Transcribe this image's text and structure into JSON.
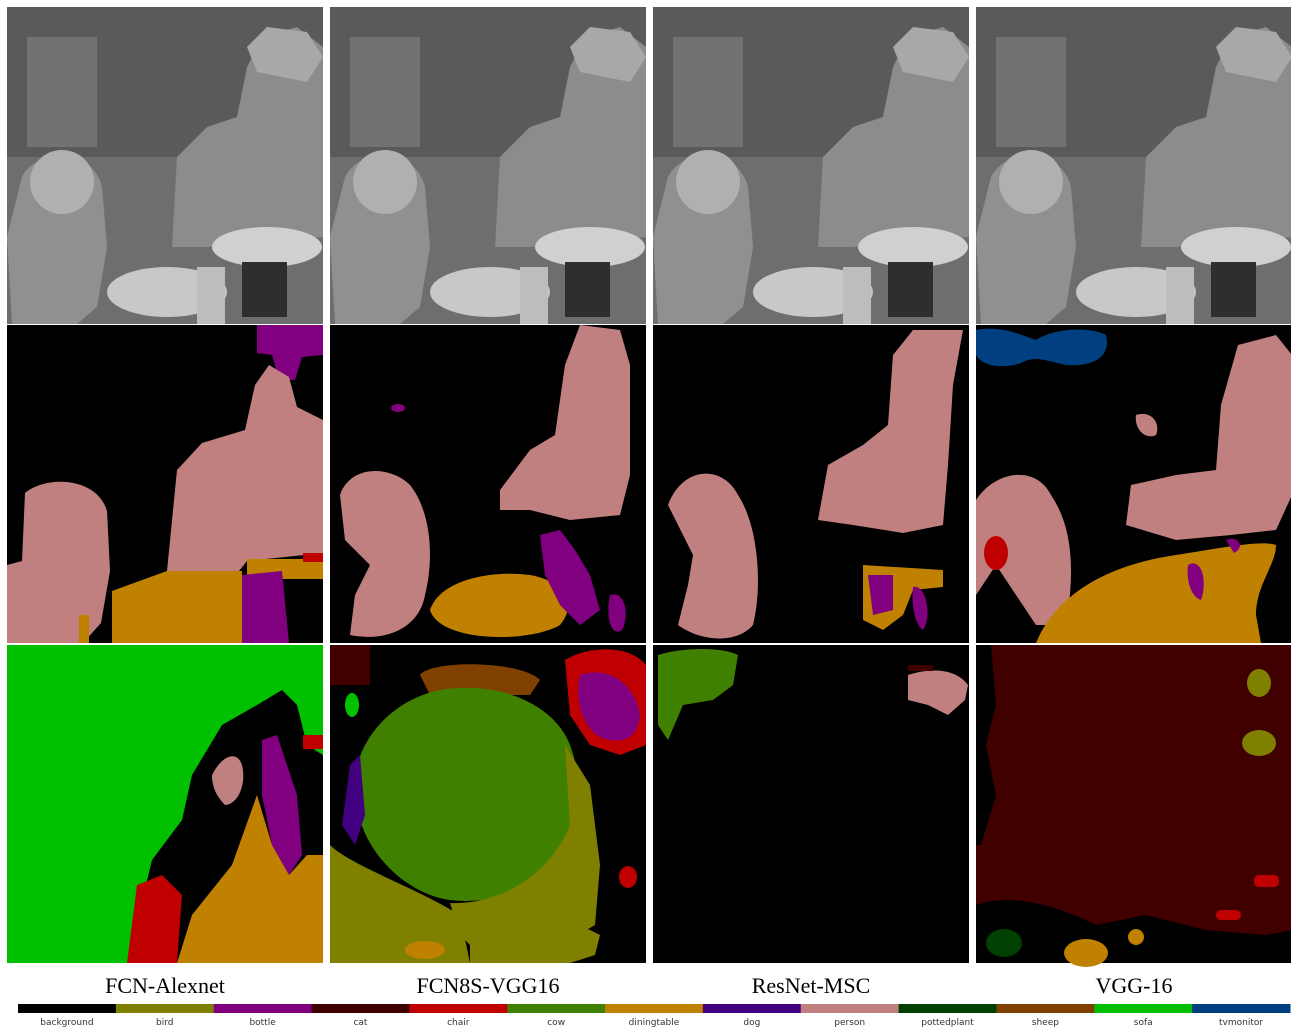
{
  "columns": [
    "FCN-Alexnet",
    "FCN8S-VGG16",
    "ResNet-MSC",
    "VGG-16"
  ],
  "legend": [
    {
      "label": "background",
      "color": "#000000"
    },
    {
      "label": "bird",
      "color": "#808000"
    },
    {
      "label": "bottle",
      "color": "#800080"
    },
    {
      "label": "cat",
      "color": "#400000"
    },
    {
      "label": "chair",
      "color": "#c00000"
    },
    {
      "label": "cow",
      "color": "#408000"
    },
    {
      "label": "diningtable",
      "color": "#c08000"
    },
    {
      "label": "dog",
      "color": "#400080"
    },
    {
      "label": "person",
      "color": "#c08080"
    },
    {
      "label": "pottedplant",
      "color": "#004000"
    },
    {
      "label": "sheep",
      "color": "#804000"
    },
    {
      "label": "sofa",
      "color": "#00c000"
    },
    {
      "label": "tvmonitor",
      "color": "#004080"
    }
  ]
}
